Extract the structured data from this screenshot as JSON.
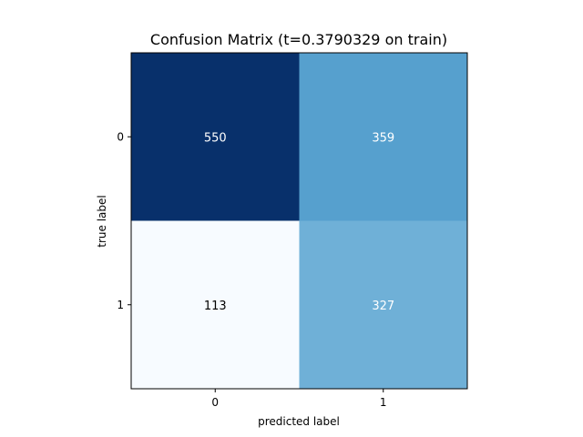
{
  "chart_data": {
    "type": "heatmap",
    "title": "Confusion Matrix (t=0.3790329 on train)",
    "xlabel": "predicted label",
    "ylabel": "true label",
    "x_ticks": [
      "0",
      "1"
    ],
    "y_ticks": [
      "0",
      "1"
    ],
    "matrix": [
      [
        550,
        359
      ],
      [
        113,
        327
      ]
    ],
    "colormap": "Blues",
    "cell_colors": [
      [
        "#08306b",
        "#56a0ce"
      ],
      [
        "#f7fbff",
        "#6fb0d7"
      ]
    ],
    "text_colors": [
      [
        "#ffffff",
        "#ffffff"
      ],
      [
        "#000000",
        "#ffffff"
      ]
    ]
  }
}
